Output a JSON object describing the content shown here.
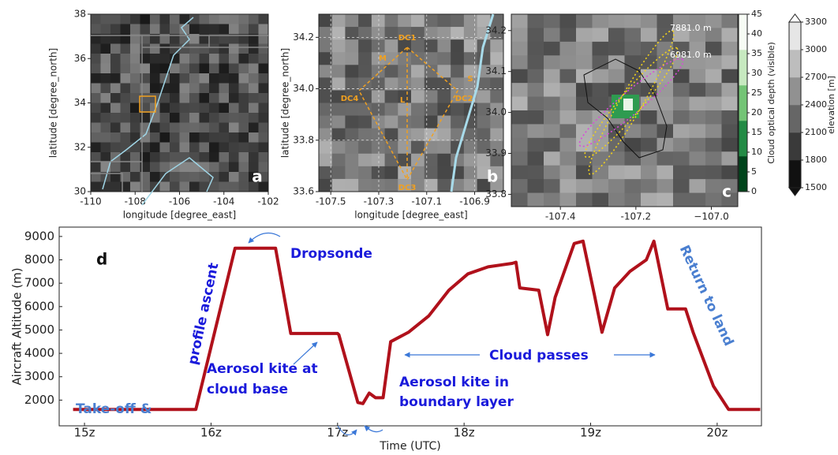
{
  "chart_data": [
    {
      "type": "map",
      "panel": "a",
      "xlabel": "longitude [degree_east]",
      "ylabel": "latitude [degree_north]",
      "xlim": [
        -110,
        -102
      ],
      "xticks": [
        -110,
        -108,
        -106,
        -104,
        -102
      ],
      "ylim": [
        30,
        38
      ],
      "yticks": [
        30,
        32,
        34,
        36,
        38
      ]
    },
    {
      "type": "map",
      "panel": "b",
      "xlabel": "longitude [degree_east]",
      "ylabel": "latitude [degree_north]",
      "xlim": [
        -107.55,
        -106.78
      ],
      "xticks": [
        -107.5,
        -107.3,
        -107.1,
        -106.9
      ],
      "ylim": [
        33.6,
        34.29
      ],
      "yticks": [
        33.6,
        33.8,
        {
          "value": 34,
          "label": "34.0"
        },
        34.2
      ],
      "grid": true,
      "annotations": [
        "DC1",
        "DC2",
        "DC3",
        "DC4",
        "M",
        "S",
        "L"
      ]
    },
    {
      "type": "map",
      "panel": "c",
      "xlim": [
        -107.53,
        -106.93
      ],
      "xticks": [
        -107.4,
        -107.2,
        {
          "value": -107,
          "label": "−107.0"
        }
      ],
      "ylim": [
        33.77,
        34.24
      ],
      "yticks": [
        33.8,
        33.9,
        {
          "value": 34,
          "label": "34.0"
        },
        34.1,
        34.2
      ],
      "annotations": [
        "7881.0 m",
        "6981.0 m"
      ]
    },
    {
      "type": "colorbar",
      "label": "Cloud optical depth (visible)",
      "ylim": [
        0,
        45
      ],
      "yticks": [
        0,
        5,
        10,
        15,
        20,
        25,
        30,
        35,
        40,
        45
      ],
      "colors": [
        "#00441b",
        "#238b45",
        "#74c476",
        "#c7e9c0",
        "#f7fcf5"
      ]
    },
    {
      "type": "colorbar",
      "label": "elevation [m]",
      "ylim": [
        1500,
        3300
      ],
      "yticks": [
        1500,
        1800,
        2100,
        2400,
        2700,
        3000,
        3300
      ],
      "colors": [
        "#111111",
        "#3a3a3a",
        "#666666",
        "#919191",
        "#bdbdbd",
        "#e6e6e6"
      ]
    },
    {
      "type": "line",
      "xlabel": "Time (UTC)",
      "ylabel": "Aircraft Altitude (m)",
      "panel": "d",
      "xlim": [
        14.8,
        20.35
      ],
      "xticks": [
        {
          "value": 15,
          "label": "15z"
        },
        {
          "value": 16,
          "label": "16z"
        },
        {
          "value": 17,
          "label": "17z"
        },
        {
          "value": 18,
          "label": "18z"
        },
        {
          "value": 19,
          "label": "19z"
        },
        {
          "value": 20,
          "label": "20z"
        }
      ],
      "ylim": [
        900,
        9400
      ],
      "yticks": [
        2000,
        3000,
        4000,
        5000,
        6000,
        7000,
        8000,
        9000
      ],
      "x": [
        14.91,
        15.88,
        16.19,
        16.51,
        16.63,
        17.0,
        17.01,
        17.16,
        17.2,
        17.25,
        17.3,
        17.36,
        17.42,
        17.56,
        17.72,
        17.88,
        18.03,
        18.19,
        18.38,
        18.41,
        18.44,
        18.59,
        18.66,
        18.72,
        18.87,
        18.94,
        19.03,
        19.09,
        19.19,
        19.31,
        19.44,
        19.5,
        19.61,
        19.75,
        19.81,
        19.97,
        20.09,
        20.34
      ],
      "series": [
        {
          "color": "#b0111b",
          "values": [
            1600,
            1600,
            8500,
            8500,
            4850,
            4850,
            4800,
            1900,
            1850,
            2300,
            2100,
            2100,
            4500,
            4900,
            5600,
            6700,
            7400,
            7700,
            7850,
            7900,
            6800,
            6700,
            4800,
            6400,
            8700,
            8800,
            6500,
            4900,
            6800,
            7500,
            8000,
            8800,
            5900,
            5900,
            4900,
            2600,
            1600,
            1600
          ]
        }
      ],
      "annotations": [
        "Dropsonde",
        "profile ascent",
        "Take-off &",
        "Aerosol kite at",
        "cloud base",
        "Aerosol kite in",
        "boundary layer",
        "Cloud passes",
        "Return to land"
      ]
    }
  ]
}
